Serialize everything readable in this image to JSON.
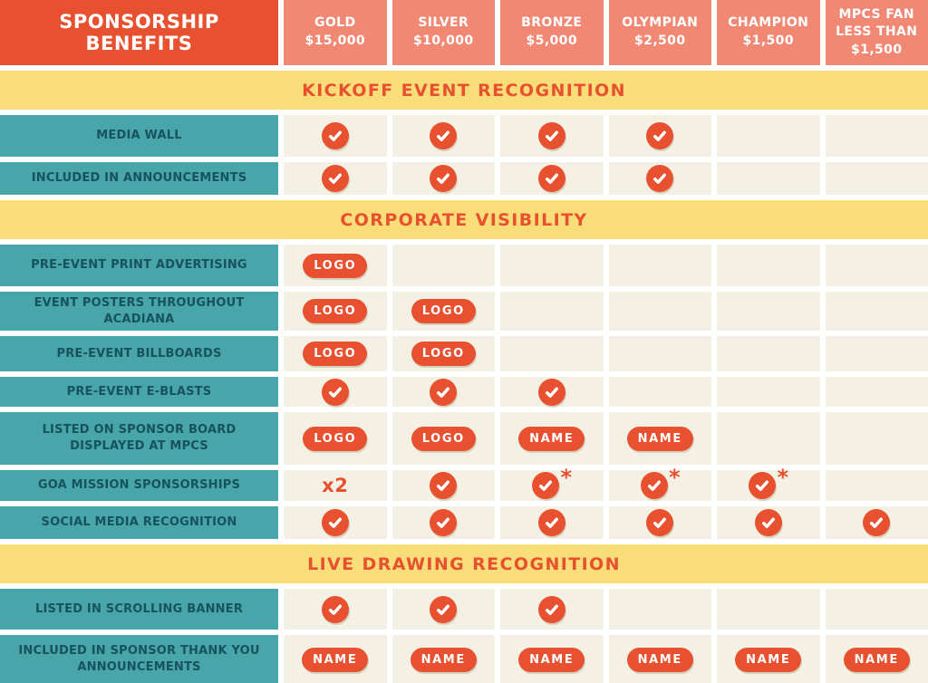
{
  "colors": {
    "accent_red": "#E8512F",
    "tier_salmon": "#F08874",
    "section_yellow": "#F8DD78",
    "row_teal": "#48A5AA",
    "cell_cream": "#F4F1E4",
    "label_text": "#17535C",
    "badge_text": "#FFFFFF"
  },
  "header": {
    "title": "SPONSORSHIP BENEFITS",
    "tiers": [
      {
        "name": "GOLD",
        "price": "$15,000"
      },
      {
        "name": "SILVER",
        "price": "$10,000"
      },
      {
        "name": "BRONZE",
        "price": "$5,000"
      },
      {
        "name": "OLYMPIAN",
        "price": "$2,500"
      },
      {
        "name": "CHAMPION",
        "price": "$1,500"
      },
      {
        "name": "MPCS FAN",
        "price": "LESS THAN $1,500"
      }
    ]
  },
  "badge_labels": {
    "logo": "LOGO",
    "name": "NAME",
    "x2": "x2",
    "asterisk": "*"
  },
  "sections": [
    {
      "title": "KICKOFF EVENT RECOGNITION",
      "rows": [
        {
          "label": "MEDIA WALL",
          "cells": [
            "check",
            "check",
            "check",
            "check",
            "",
            ""
          ]
        },
        {
          "label": "INCLUDED IN ANNOUNCEMENTS",
          "cells": [
            "check",
            "check",
            "check",
            "check",
            "",
            ""
          ]
        }
      ]
    },
    {
      "title": "CORPORATE VISIBILITY",
      "rows": [
        {
          "label": "PRE-EVENT PRINT ADVERTISING",
          "cells": [
            "logo",
            "",
            "",
            "",
            "",
            ""
          ]
        },
        {
          "label": "EVENT POSTERS THROUGHOUT ACADIANA",
          "cells": [
            "logo",
            "logo",
            "",
            "",
            "",
            ""
          ]
        },
        {
          "label": "PRE-EVENT BILLBOARDS",
          "cells": [
            "logo",
            "logo",
            "",
            "",
            "",
            ""
          ]
        },
        {
          "label": "PRE-EVENT E-BLASTS",
          "cells": [
            "check",
            "check",
            "check",
            "",
            "",
            ""
          ]
        },
        {
          "label": "LISTED ON SPONSOR BOARD DISPLAYED AT MPCS",
          "cells": [
            "logo",
            "logo",
            "name",
            "name",
            "",
            ""
          ]
        },
        {
          "label": "GOA MISSION SPONSORSHIPS",
          "cells": [
            "x2",
            "check",
            "check-star",
            "check-star",
            "check-star",
            ""
          ]
        },
        {
          "label": "SOCIAL MEDIA RECOGNITION",
          "cells": [
            "check",
            "check",
            "check",
            "check",
            "check",
            "check"
          ]
        }
      ]
    },
    {
      "title": "LIVE DRAWING RECOGNITION",
      "rows": [
        {
          "label": "LISTED IN SCROLLING BANNER",
          "cells": [
            "check",
            "check",
            "check",
            "",
            "",
            ""
          ]
        },
        {
          "label": "INCLUDED IN SPONSOR THANK YOU ANNOUNCEMENTS",
          "cells": [
            "name",
            "name",
            "name",
            "name",
            "name",
            "name"
          ]
        }
      ]
    }
  ]
}
